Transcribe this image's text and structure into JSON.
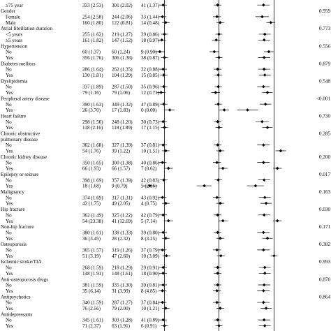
{
  "chart_data": {
    "type": "forest",
    "panels": 3,
    "reference_line": 1,
    "rows": [
      {
        "label": "≥75 year",
        "indent": 1,
        "c1": "333 (2.53)",
        "c2": "301 (2.02)",
        "c3": "41 (1.37)",
        "p": "",
        "est": [
          0.98,
          0.98,
          0.84
        ]
      },
      {
        "label": "Gender",
        "indent": 0,
        "c1": "",
        "c2": "",
        "c3": "",
        "p": "0.959"
      },
      {
        "label": "Female",
        "indent": 1,
        "c1": "254 (2.58)",
        "c2": "244 (2.06)",
        "c3": "33 (1.44)",
        "p": "",
        "est": [
          0.97,
          0.97,
          0.82
        ]
      },
      {
        "label": "Male",
        "indent": 1,
        "c1": "160 (1.80)",
        "c2": "122 (0.81)",
        "c3": "14 (0.48)",
        "p": "",
        "est": [
          1.02,
          1.02,
          0.95
        ]
      },
      {
        "label": "Atrial fibrillation duration",
        "indent": 0,
        "c1": "",
        "c2": "",
        "c3": "",
        "p": "0.773"
      },
      {
        "label": "<5 years",
        "indent": 1,
        "c1": "255 (1.62)",
        "c2": "219 (1.27)",
        "c3": "29 (0.86)",
        "p": "",
        "est": [
          1.0,
          1.0,
          0.86
        ]
      },
      {
        "label": "≥5 years",
        "indent": 1,
        "c1": "161 (1.82)",
        "c2": "147 (1.52)",
        "c3": "18 (0.97)",
        "p": "",
        "est": [
          0.96,
          0.96,
          0.85
        ]
      },
      {
        "label": "Hypertension",
        "indent": 0,
        "c1": "",
        "c2": "",
        "c3": "",
        "p": "0.556"
      },
      {
        "label": "No",
        "indent": 1,
        "c1": "60 (1.37)",
        "c2": "60 (1.24)",
        "c3": "9 (0.90)",
        "p": "",
        "est": [
          0.93,
          0.93,
          0.92
        ]
      },
      {
        "label": "Yes",
        "indent": 1,
        "c1": "356 (1.76)",
        "c2": "306 (1.38)",
        "c3": "38 (0.87)",
        "p": "",
        "est": [
          1.0,
          1.0,
          0.85
        ]
      },
      {
        "label": "Diabetes mellitus",
        "indent": 0,
        "c1": "",
        "c2": "",
        "c3": "",
        "p": "0.879"
      },
      {
        "label": "No",
        "indent": 1,
        "c1": "286 (1.64)",
        "c2": "262 (1.35)",
        "c3": "32 (0.88)",
        "p": "",
        "est": [
          0.98,
          0.98,
          0.85
        ]
      },
      {
        "label": "Yes",
        "indent": 1,
        "c1": "130 (1.81)",
        "c2": "104 (1.29)",
        "c3": "15 (0.85)",
        "p": "",
        "est": [
          0.99,
          0.99,
          0.86
        ]
      },
      {
        "label": "Dyslipidemia",
        "indent": 0,
        "c1": "",
        "c2": "",
        "c3": "",
        "p": "0.548"
      },
      {
        "label": "No",
        "indent": 1,
        "c1": "337 (1.89)",
        "c2": "287 (1.50)",
        "c3": "35 (0.96)",
        "p": "",
        "est": [
          0.99,
          0.99,
          0.84
        ]
      },
      {
        "label": "Yes",
        "indent": 1,
        "c1": "79 (1.16)",
        "c2": "79 (1.06)",
        "c3": "12 (0.71)",
        "p": "",
        "est": [
          0.95,
          0.95,
          0.9
        ]
      },
      {
        "label": "Peripheral artery disease",
        "indent": 0,
        "c1": "",
        "c2": "",
        "c3": "",
        "p": "<0.001"
      },
      {
        "label": "No",
        "indent": 1,
        "c1": "390 (1.63)",
        "c2": "349 (1.32)",
        "c3": "47 (0.89)",
        "p": "",
        "est": [
          0.99,
          0.99,
          0.87
        ]
      },
      {
        "label": "Yes",
        "indent": 1,
        "c1": "26 (3.70)",
        "c2": "17 (1.83)",
        "c3": "0 (0.00)",
        "p": "",
        "est": [
          1.08,
          1.08,
          0.6
        ]
      },
      {
        "label": "Heart failure",
        "indent": 0,
        "c1": "",
        "c2": "",
        "c3": "",
        "p": "0.730"
      },
      {
        "label": "No",
        "indent": 1,
        "c1": "298 (1.56)",
        "c2": "248 (1.20)",
        "c3": "30 (0.73)",
        "p": "",
        "est": [
          0.98,
          0.98,
          0.82
        ]
      },
      {
        "label": "Yes",
        "indent": 1,
        "c1": "118 (2.16)",
        "c2": "118 (1.89)",
        "c3": "17 (1.15)",
        "p": "",
        "est": [
          1.0,
          1.0,
          0.9
        ]
      },
      {
        "label": "Chronic obstructive pulmonary disease",
        "indent": 0,
        "c1": "",
        "c2": "",
        "c3": "",
        "p": "0.285",
        "rows": 2
      },
      {
        "label": "No",
        "indent": 1,
        "c1": "362 (1.68)",
        "c2": "327 (1.39)",
        "c3": "37 (0.81)",
        "p": "",
        "est": [
          0.98,
          0.98,
          0.84
        ]
      },
      {
        "label": "Yes",
        "indent": 1,
        "c1": "54 (1.76)",
        "c2": "39 (1.22)",
        "c3": "10 (1.51)",
        "p": "",
        "est": [
          1.02,
          1.02,
          1.1
        ]
      },
      {
        "label": "Chronic kidney disease",
        "indent": 0,
        "c1": "",
        "c2": "",
        "c3": "",
        "p": "0.200"
      },
      {
        "label": "No",
        "indent": 1,
        "c1": "350 (1.65)",
        "c2": "300 (1.38)",
        "c3": "40 (0.86)",
        "p": "",
        "est": [
          0.97,
          0.97,
          0.84
        ]
      },
      {
        "label": "Yes",
        "indent": 1,
        "c1": "66 (1.93)",
        "c2": "66 (1.57)",
        "c3": "7 (0.62)",
        "p": "",
        "est": [
          1.06,
          1.06,
          1.05
        ]
      },
      {
        "label": "Epilepsy or seizure",
        "indent": 0,
        "c1": "",
        "c2": "",
        "c3": "",
        "p": "0.017"
      },
      {
        "label": "No",
        "indent": 1,
        "c1": "398 (1.69)",
        "c2": "357 (1.39)",
        "c3": "42 (0.83)",
        "p": "",
        "est": [
          0.99,
          0.99,
          0.85
        ]
      },
      {
        "label": "Yes",
        "indent": 1,
        "c1": "18 (1.68)",
        "c2": "9 (0.79)",
        "c3": "5 (2.16)",
        "p": "",
        "est": [
          0.78,
          0.78,
          0.72
        ]
      },
      {
        "label": "Malignancy",
        "indent": 0,
        "c1": "",
        "c2": "",
        "c3": "",
        "p": "0.163"
      },
      {
        "label": "No",
        "indent": 1,
        "c1": "374 (1.69)",
        "c2": "317 (1.31)",
        "c3": "43 (0.92)",
        "p": "",
        "est": [
          0.97,
          0.97,
          0.86
        ]
      },
      {
        "label": "Yes",
        "indent": 1,
        "c1": "42 (1.75)",
        "c2": "49 (2.05)",
        "c3": "4 (0.75)",
        "p": "",
        "est": [
          1.02,
          1.02,
          0.88
        ]
      },
      {
        "label": "Hip fracture",
        "indent": 0,
        "c1": "",
        "c2": "",
        "c3": "",
        "p": "0.030"
      },
      {
        "label": "No",
        "indent": 1,
        "c1": "362 (1.49)",
        "c2": "325 (1.22)",
        "c3": "42 (0.79)",
        "p": "",
        "est": [
          0.98,
          0.98,
          0.85
        ]
      },
      {
        "label": "Yes",
        "indent": 1,
        "c1": "54 (23.38)",
        "c2": "41 (12.69)",
        "c3": "5 (7.14)",
        "p": "",
        "est": [
          1.06,
          1.06,
          1.05
        ]
      },
      {
        "label": "Non-hip fracture",
        "indent": 0,
        "c1": "",
        "c2": "",
        "c3": "",
        "p": "0.171"
      },
      {
        "label": "No",
        "indent": 1,
        "c1": "380 (1.61)",
        "c2": "338 (1.33)",
        "c3": "39 (0.80)",
        "p": "",
        "est": [
          0.98,
          0.98,
          0.84
        ]
      },
      {
        "label": "Yes",
        "indent": 1,
        "c1": "36 (3.45)",
        "c2": "28 (2.32)",
        "c3": "8 (3.25)",
        "p": "",
        "est": [
          1.02,
          1.02,
          0.9
        ]
      },
      {
        "label": "Osteoporosis",
        "indent": 0,
        "c1": "",
        "c2": "",
        "c3": "",
        "p": "0.382"
      },
      {
        "label": "No",
        "indent": 1,
        "c1": "365 (1.57)",
        "c2": "319 (1.26)",
        "c3": "37 (0.79)",
        "p": "",
        "est": [
          0.97,
          0.97,
          0.84
        ]
      },
      {
        "label": "Yes",
        "indent": 1,
        "c1": "51 (3.19)",
        "c2": "47 (2.60)",
        "c3": "10 (3.09)",
        "p": "",
        "est": [
          1.03,
          1.03,
          1.0
        ]
      },
      {
        "label": "Ischemic stroke/TIA",
        "indent": 0,
        "c1": "",
        "c2": "",
        "c3": "",
        "p": "0.993"
      },
      {
        "label": "No",
        "indent": 1,
        "c1": "268 (1.59)",
        "c2": "218 (1.29)",
        "c3": "29 (0.91)",
        "p": "",
        "est": [
          0.98,
          0.98,
          0.86
        ]
      },
      {
        "label": "Yes",
        "indent": 1,
        "c1": "148 (1.91)",
        "c2": "148 (1.61)",
        "c3": "18 (0.90)",
        "p": "",
        "est": [
          0.98,
          0.98,
          0.86
        ]
      },
      {
        "label": "Anti-osteoporosis drugs",
        "indent": 0,
        "c1": "",
        "c2": "",
        "c3": "",
        "p": "0.870"
      },
      {
        "label": "No",
        "indent": 1,
        "c1": "381 (1.59)",
        "c2": "335 (1.30)",
        "c3": "39 (0.81)",
        "p": "",
        "est": [
          0.98,
          0.98,
          0.85
        ]
      },
      {
        "label": "Yes",
        "indent": 1,
        "c1": "35 (6.14)",
        "c2": "31 (3.99)",
        "c3": "8 (4.85)",
        "p": "",
        "est": [
          0.97,
          0.97,
          0.84
        ]
      },
      {
        "label": "Antipsychotics",
        "indent": 0,
        "c1": "",
        "c2": "",
        "c3": "",
        "p": "0.864"
      },
      {
        "label": "No",
        "indent": 1,
        "c1": "340 (1.59)",
        "c2": "287 (1.27)",
        "c3": "37 (0.84)",
        "p": "",
        "est": [
          0.97,
          0.97,
          0.84
        ]
      },
      {
        "label": "Yes",
        "indent": 1,
        "c1": "76 (2.56)",
        "c2": "79 (2.00)",
        "c3": "10 (1.21)",
        "p": "",
        "est": [
          1.02,
          1.02,
          0.88
        ]
      },
      {
        "label": "Antidepressants",
        "indent": 0,
        "c1": "",
        "c2": "",
        "c3": "",
        "p": ""
      },
      {
        "label": "No",
        "indent": 1,
        "c1": "345 (1.61)",
        "c2": "303 (1.28)",
        "c3": "41 (0.89)",
        "p": "",
        "est": [
          0.98,
          0.98,
          0.85
        ]
      },
      {
        "label": "Yes",
        "indent": 1,
        "c1": "71 (2.37)",
        "c2": "63 (1.91)",
        "c3": "6 (0.91)",
        "p": "",
        "est": [
          1.0,
          1.0,
          0.86
        ]
      }
    ]
  }
}
